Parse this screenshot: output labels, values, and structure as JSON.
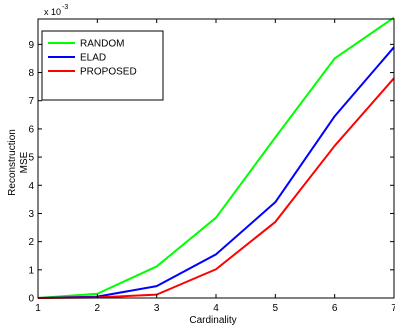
{
  "chart_data": {
    "type": "line",
    "title": "",
    "xlabel": "Cardinality",
    "ylabel_lines": [
      "Reconstruction",
      "MSE"
    ],
    "scale_label": "x 10",
    "scale_exponent": "-3",
    "x": [
      1,
      2,
      3,
      4,
      5,
      6,
      7
    ],
    "xlim": [
      1,
      7
    ],
    "ylim": [
      0,
      9.9
    ],
    "xticks": [
      1,
      2,
      3,
      4,
      5,
      6,
      7
    ],
    "yticks": [
      0,
      1,
      2,
      3,
      4,
      5,
      6,
      7,
      8,
      9
    ],
    "grid": false,
    "legend_position": "top-left",
    "series": [
      {
        "name": "RANDOM",
        "color": "#00ff00",
        "values": [
          0.0,
          0.15,
          1.12,
          2.85,
          5.7,
          8.5,
          9.95
        ]
      },
      {
        "name": "ELAD",
        "color": "#0000ff",
        "values": [
          0.0,
          0.05,
          0.42,
          1.55,
          3.4,
          6.45,
          8.9
        ]
      },
      {
        "name": "PROPOSED",
        "color": "#ff0000",
        "values": [
          0.0,
          0.02,
          0.12,
          1.02,
          2.7,
          5.4,
          7.8
        ]
      }
    ]
  }
}
